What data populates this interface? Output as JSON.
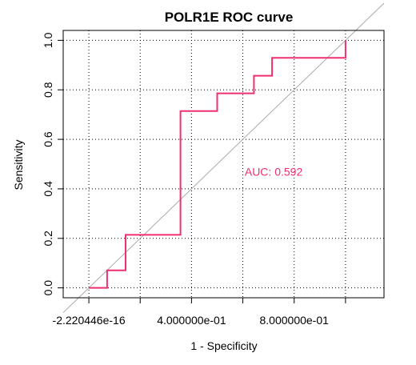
{
  "chart_data": {
    "type": "line",
    "title": "POLR1E ROC curve",
    "xlabel": "1 - Specificity",
    "ylabel": "Sensitivity",
    "xlim": [
      -0.1,
      1.15
    ],
    "ylim": [
      -0.04,
      1.04
    ],
    "x_ticks": [
      {
        "value": 0.0,
        "label": "-2.220446e-16"
      },
      {
        "value": 0.2,
        "label": ""
      },
      {
        "value": 0.4,
        "label": "4.000000e-01"
      },
      {
        "value": 0.6,
        "label": ""
      },
      {
        "value": 0.8,
        "label": "8.000000e-01"
      },
      {
        "value": 1.0,
        "label": ""
      }
    ],
    "y_ticks": [
      {
        "value": 0.0,
        "label": "0.0"
      },
      {
        "value": 0.2,
        "label": "0.2"
      },
      {
        "value": 0.4,
        "label": "0.4"
      },
      {
        "value": 0.6,
        "label": "0.6"
      },
      {
        "value": 0.8,
        "label": "0.8"
      },
      {
        "value": 1.0,
        "label": "1.0"
      }
    ],
    "grid": true,
    "grid_style": "dotted",
    "series": [
      {
        "color": "#f0306e",
        "x": [
          0.0,
          0.071,
          0.071,
          0.143,
          0.143,
          0.357,
          0.357,
          0.5,
          0.5,
          0.643,
          0.643,
          0.714,
          0.714,
          1.0,
          1.0
        ],
        "y": [
          0.0,
          0.0,
          0.071,
          0.071,
          0.214,
          0.214,
          0.714,
          0.714,
          0.786,
          0.786,
          0.857,
          0.857,
          0.929,
          0.929,
          1.0
        ]
      }
    ],
    "reference_line": {
      "color": "#aaaaaa",
      "from": [
        -0.1,
        -0.1
      ],
      "to": [
        1.15,
        1.15
      ]
    },
    "annotations": [
      {
        "text": "AUC: 0.592",
        "x": 0.72,
        "y": 0.47,
        "color": "#f0306e"
      }
    ]
  }
}
